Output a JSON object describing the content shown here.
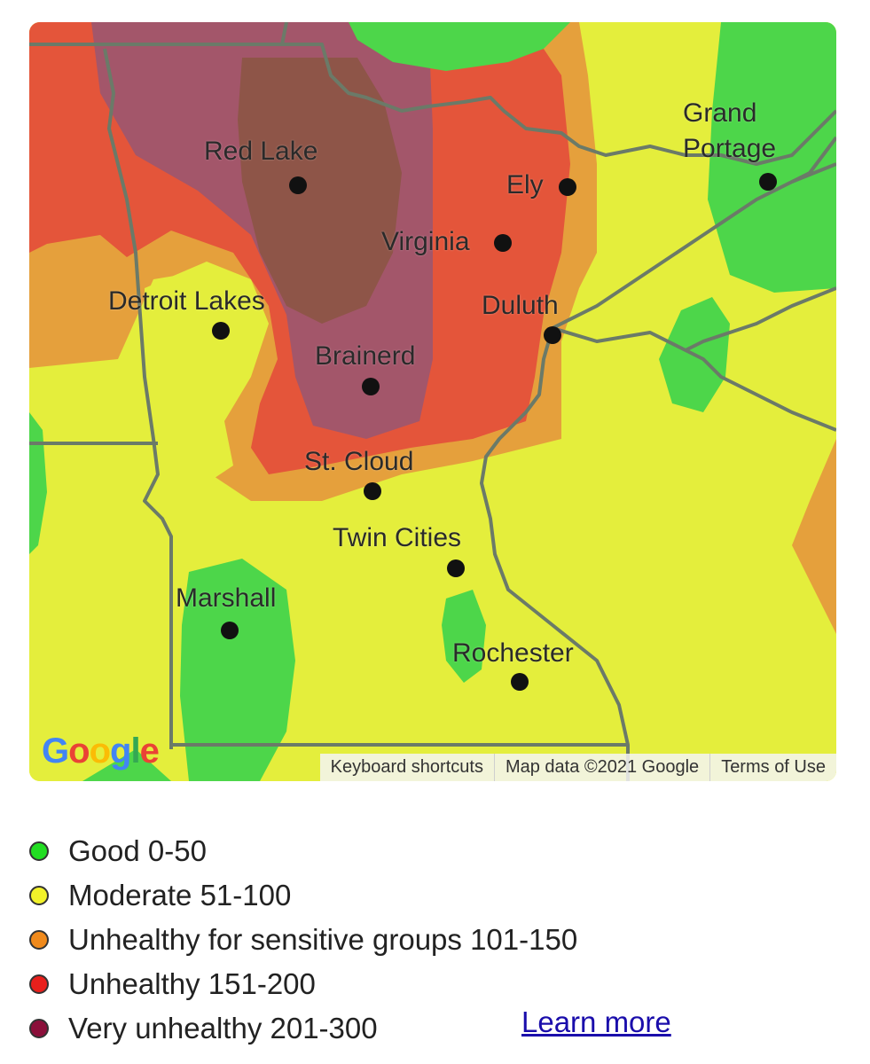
{
  "map": {
    "cities": [
      {
        "id": "red-lake",
        "name": "Red Lake"
      },
      {
        "id": "ely",
        "name": "Ely"
      },
      {
        "id": "grand-portage",
        "name": "Grand\nPortage"
      },
      {
        "id": "virginia",
        "name": "Virginia"
      },
      {
        "id": "detroit-lakes",
        "name": "Detroit Lakes"
      },
      {
        "id": "duluth",
        "name": "Duluth"
      },
      {
        "id": "brainerd",
        "name": "Brainerd"
      },
      {
        "id": "st-cloud",
        "name": "St. Cloud"
      },
      {
        "id": "twin-cities",
        "name": "Twin Cities"
      },
      {
        "id": "marshall",
        "name": "Marshall"
      },
      {
        "id": "rochester",
        "name": "Rochester"
      }
    ],
    "google_logo": {
      "letters": [
        "G",
        "o",
        "o",
        "g",
        "l",
        "e"
      ],
      "colors": [
        "#4285F4",
        "#EA4335",
        "#FBBC05",
        "#4285F4",
        "#34A853",
        "#EA4335"
      ]
    },
    "attribution": {
      "keyboard_shortcuts": "Keyboard shortcuts",
      "map_data": "Map data ©2021 Google",
      "terms": "Terms of Use"
    }
  },
  "legend": {
    "items": [
      {
        "label": "Good 0-50",
        "color": "#22dd22"
      },
      {
        "label": "Moderate 51-100",
        "color": "#f2f22a"
      },
      {
        "label": "Unhealthy for sensitive groups 101-150",
        "color": "#f08a1c"
      },
      {
        "label": "Unhealthy 151-200",
        "color": "#e8201c"
      },
      {
        "label": "Very unhealthy 201-300",
        "color": "#8b0f3a"
      }
    ],
    "learn_more": "Learn more"
  },
  "colors": {
    "good": "#4dd64a",
    "moderate": "#e4ee3c",
    "sensitive": "#e5a03c",
    "unhealthy": "#e4553a",
    "very_unhealthy": "#a3566a",
    "very_unhealthy_core": "#8e5548",
    "border": "#6b7a68"
  }
}
